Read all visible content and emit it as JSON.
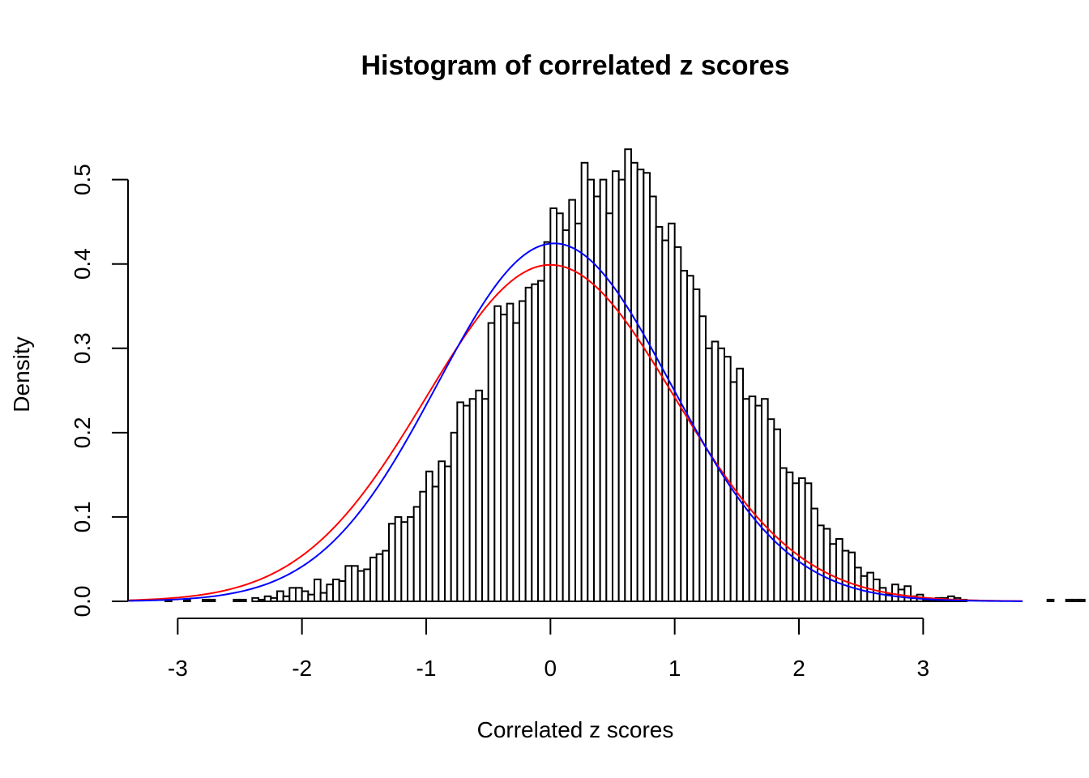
{
  "chart_data": {
    "type": "bar",
    "title": "Histogram of correlated z scores",
    "xlabel": "Correlated z scores",
    "ylabel": "Density",
    "xlim": [
      -3.4,
      3.8
    ],
    "ylim": [
      0,
      0.54
    ],
    "x_ticks": [
      -3,
      -2,
      -1,
      0,
      1,
      2,
      3
    ],
    "x_tick_labels": [
      "-3",
      "-2",
      "-1",
      "0",
      "1",
      "2",
      "3"
    ],
    "y_ticks": [
      0,
      0.1,
      0.2,
      0.3,
      0.4,
      0.5
    ],
    "y_tick_labels": [
      "0.0",
      "0.1",
      "0.2",
      "0.3",
      "0.4",
      "0.5"
    ],
    "grid": false,
    "bin_width": 0.05,
    "bin_start": -3.1,
    "densities": [
      0.002,
      0,
      0,
      0.002,
      0,
      0,
      0.002,
      0.002,
      0,
      0,
      0,
      0.002,
      0.002,
      0,
      0.004,
      0.002,
      0.006,
      0.004,
      0.012,
      0.006,
      0.016,
      0.016,
      0.012,
      0.008,
      0.026,
      0.01,
      0.02,
      0.026,
      0.024,
      0.042,
      0.042,
      0.036,
      0.038,
      0.052,
      0.056,
      0.06,
      0.092,
      0.1,
      0.094,
      0.1,
      0.112,
      0.13,
      0.154,
      0.136,
      0.166,
      0.16,
      0.2,
      0.236,
      0.232,
      0.24,
      0.25,
      0.24,
      0.33,
      0.35,
      0.34,
      0.353,
      0.33,
      0.356,
      0.372,
      0.376,
      0.38,
      0.426,
      0.466,
      0.46,
      0.44,
      0.476,
      0.448,
      0.52,
      0.5,
      0.48,
      0.5,
      0.46,
      0.51,
      0.5,
      0.536,
      0.52,
      0.512,
      0.508,
      0.48,
      0.444,
      0.428,
      0.448,
      0.42,
      0.392,
      0.386,
      0.37,
      0.338,
      0.3,
      0.308,
      0.3,
      0.29,
      0.26,
      0.276,
      0.24,
      0.243,
      0.232,
      0.24,
      0.216,
      0.204,
      0.158,
      0.153,
      0.14,
      0.146,
      0.14,
      0.11,
      0.09,
      0.086,
      0.068,
      0.074,
      0.06,
      0.058,
      0.04,
      0.03,
      0.034,
      0.026,
      0.016,
      0.008,
      0.02,
      0.014,
      0.018,
      0.006,
      0.008,
      0.002,
      0.002,
      0.004,
      0.004,
      0.006,
      0.004,
      0.002,
      0,
      0,
      0,
      0,
      0,
      0,
      0,
      0,
      0,
      0,
      0,
      0,
      0,
      0.002,
      0,
      0,
      0.002,
      0.002,
      0.002,
      0,
      0,
      0.002,
      0,
      0.002,
      0.002,
      0.002,
      0.002
    ],
    "curves": [
      {
        "mean": 0,
        "sd": 1,
        "color": "#ff0000"
      },
      {
        "mean": 0.03,
        "sd": 0.94,
        "color": "#0000ff"
      }
    ]
  }
}
